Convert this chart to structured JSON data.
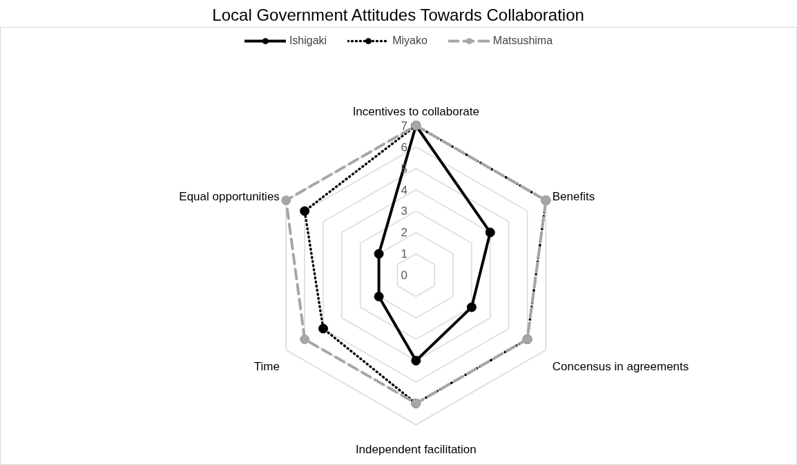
{
  "chart_data": {
    "type": "radar",
    "title": "Local Government Attitudes Towards Collaboration",
    "categories": [
      "Incentives to collaborate",
      "Benefits",
      "Concensus in agreements",
      "Independent facilitation",
      "Time",
      "Equal opportunities"
    ],
    "series": [
      {
        "name": "Ishigaki",
        "color": "#000000",
        "line_style": "solid",
        "values": [
          7,
          4,
          3,
          4,
          2,
          2
        ]
      },
      {
        "name": "Miyako",
        "color": "#000000",
        "line_style": "dotted",
        "values": [
          7,
          7,
          6,
          6,
          5,
          6
        ]
      },
      {
        "name": "Matsushima",
        "color": "#a6a6a6",
        "line_style": "dashed",
        "values": [
          7,
          7,
          6,
          6,
          6,
          7
        ]
      }
    ],
    "ylim": [
      0,
      7
    ],
    "yticks": [
      0,
      1,
      2,
      3,
      4,
      5,
      6,
      7
    ],
    "grid": true,
    "legend": "top",
    "marker": "circle"
  }
}
